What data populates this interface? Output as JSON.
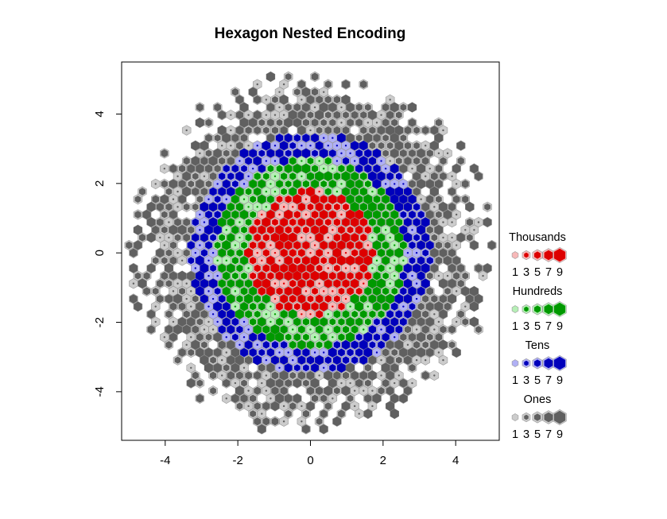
{
  "chart_data": {
    "type": "hexbin",
    "title": "Hexagon Nested Encoding",
    "xlabel": "",
    "ylabel": "",
    "xlim": [
      -5.2,
      5.2
    ],
    "ylim": [
      -5.4,
      5.5
    ],
    "x_ticks": [
      -4,
      -2,
      0,
      2,
      4
    ],
    "y_ticks": [
      -4,
      -2,
      0,
      2,
      4
    ],
    "grid": false,
    "distribution": "bivariate standard normal counts, binned in hexagons",
    "encoding": "digit place value (ones, tens, hundreds, thousands) shown by color; digit value 1-9 shown by shade and hexagon size",
    "legend": {
      "placement": "right",
      "groups": [
        {
          "name": "Thousands",
          "color": "#dd0000",
          "light": "#f7b8b8",
          "digits": [
            "1",
            "3",
            "5",
            "7",
            "9"
          ]
        },
        {
          "name": "Hundreds",
          "color": "#009900",
          "light": "#b6efb6",
          "digits": [
            "1",
            "3",
            "5",
            "7",
            "9"
          ]
        },
        {
          "name": "Tens",
          "color": "#0000bb",
          "light": "#b0b0f5",
          "digits": [
            "1",
            "3",
            "5",
            "7",
            "9"
          ]
        },
        {
          "name": "Ones",
          "color": "#606060",
          "light": "#cccccc",
          "digits": [
            "1",
            "3",
            "5",
            "7",
            "9"
          ]
        }
      ]
    },
    "bands": [
      {
        "group": "Thousands",
        "max_radius": 1.75
      },
      {
        "group": "Hundreds",
        "max_radius": 2.6
      },
      {
        "group": "Tens",
        "max_radius": 3.3
      },
      {
        "group": "Ones",
        "max_radius": 5.1
      }
    ]
  }
}
